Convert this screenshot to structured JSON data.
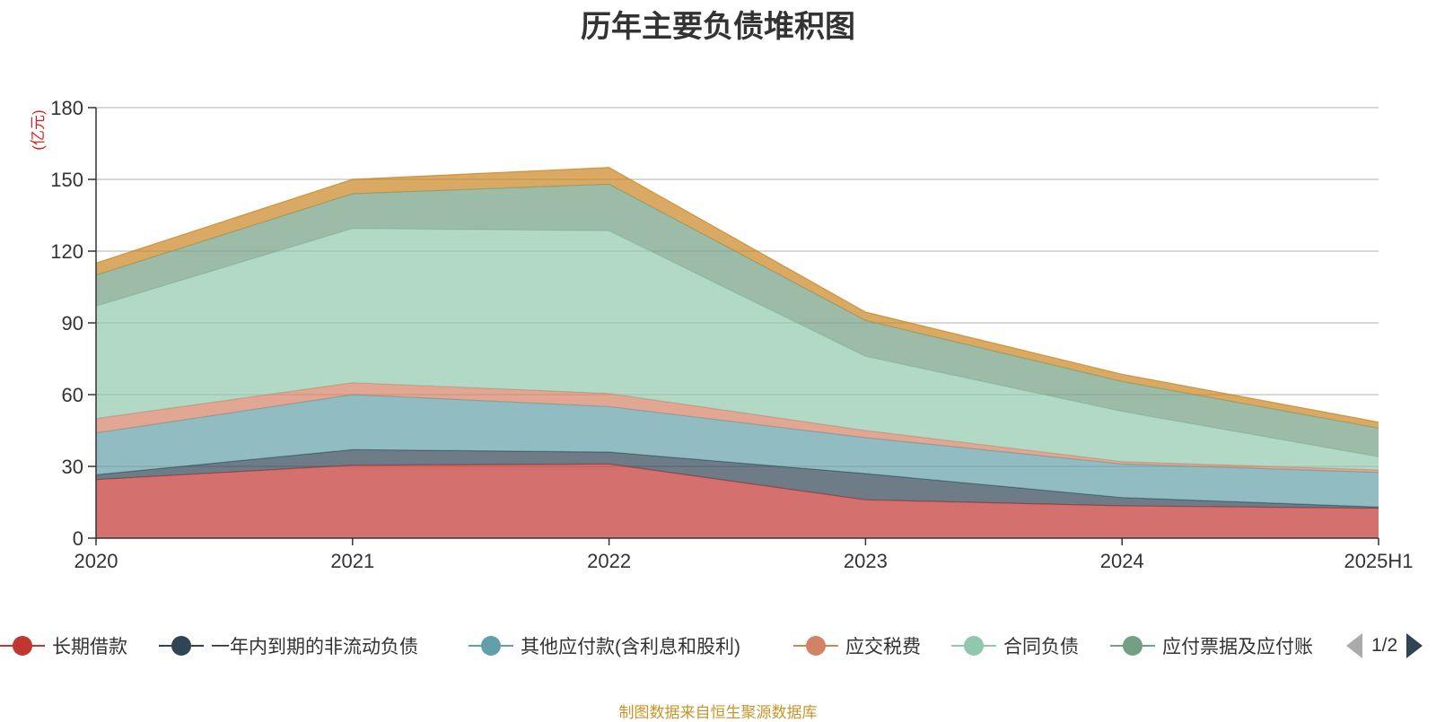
{
  "chart_data": {
    "type": "area",
    "stacked": true,
    "title": "历年主要负债堆积图",
    "y_unit": "(亿元)",
    "ylim": [
      0,
      180
    ],
    "yticks": [
      0,
      30,
      60,
      90,
      120,
      150,
      180
    ],
    "categories": [
      "2020",
      "2021",
      "2022",
      "2023",
      "2024",
      "2025H1"
    ],
    "grid": true,
    "legend_position": "bottom",
    "series": [
      {
        "name": "长期借款",
        "color": "#c23531",
        "values": [
          24.5,
          30.5,
          31.0,
          16.0,
          13.5,
          12.5
        ]
      },
      {
        "name": "一年内到期的非流动负债",
        "color": "#2f4554",
        "values": [
          2.0,
          6.5,
          5.0,
          11.0,
          3.5,
          0.5
        ]
      },
      {
        "name": "其他应付款(含利息和股利)",
        "color": "#61a0a8",
        "values": [
          17.5,
          23.0,
          19.0,
          15.0,
          14.0,
          14.5
        ]
      },
      {
        "name": "应交税费",
        "color": "#d48265",
        "values": [
          6.0,
          5.0,
          5.5,
          3.0,
          1.0,
          1.0
        ]
      },
      {
        "name": "合同负债",
        "color": "#91c7ae",
        "values": [
          47.0,
          64.5,
          68.0,
          31.0,
          21.0,
          5.5
        ]
      },
      {
        "name": "应付票据及应付账款",
        "color": "#749f83",
        "values": [
          13.0,
          14.5,
          19.5,
          15.0,
          12.5,
          12.0
        ]
      },
      {
        "color": "#ca8622",
        "values": [
          5.0,
          6.0,
          7.0,
          3.5,
          3.0,
          2.5
        ]
      }
    ]
  },
  "legend": {
    "items": [
      {
        "label": "长期借款",
        "color": "#c23531"
      },
      {
        "label": "一年内到期的非流动负债",
        "color": "#2f4554"
      },
      {
        "label": "其他应付款(含利息和股利)",
        "color": "#61a0a8"
      },
      {
        "label": "应交税费",
        "color": "#d48265"
      },
      {
        "label": "合同负债",
        "color": "#91c7ae"
      },
      {
        "label": "应付票据及应付账",
        "color": "#749f83"
      }
    ],
    "page_indicator": "1/2"
  },
  "source_note": "制图数据来自恒生聚源数据库"
}
